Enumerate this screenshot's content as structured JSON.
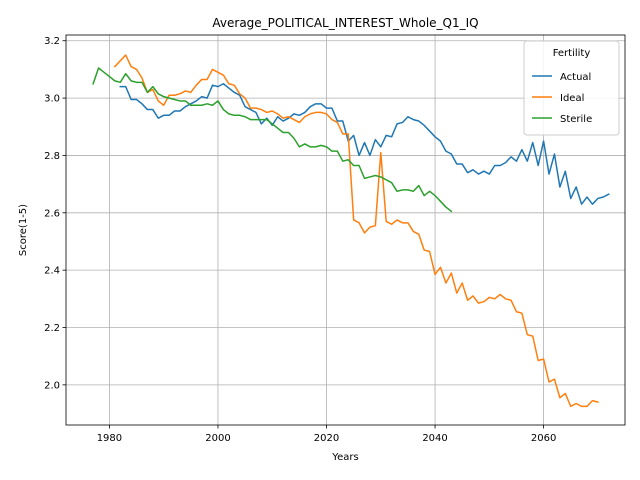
{
  "chart_data": {
    "type": "line",
    "title": "Average_POLITICAL_INTEREST_Whole_Q1_IQ",
    "xlabel": "Years",
    "ylabel": "Score(1-5)",
    "xlim": [
      1972,
      2075
    ],
    "ylim": [
      1.86,
      3.22
    ],
    "xticks": [
      1980,
      2000,
      2020,
      2040,
      2060
    ],
    "yticks": [
      2.0,
      2.2,
      2.4,
      2.6,
      2.8,
      3.0,
      3.2
    ],
    "xtick_labels": [
      "1980",
      "2000",
      "2020",
      "2040",
      "2060"
    ],
    "ytick_labels": [
      "2.0",
      "2.2",
      "2.4",
      "2.6",
      "2.8",
      "3.0",
      "3.2"
    ],
    "grid": true,
    "legend": {
      "title": "Fertility",
      "placement": "top-right"
    },
    "series": [
      {
        "name": "Actual",
        "color": "#1f77b4",
        "start_year": 1982,
        "values": [
          3.04,
          3.04,
          2.995,
          2.995,
          2.98,
          2.96,
          2.96,
          2.93,
          2.94,
          2.94,
          2.955,
          2.955,
          2.97,
          2.98,
          2.99,
          3.005,
          3.0,
          3.045,
          3.04,
          3.05,
          3.035,
          3.02,
          3.01,
          2.97,
          2.96,
          2.95,
          2.91,
          2.93,
          2.905,
          2.935,
          2.92,
          2.93,
          2.945,
          2.94,
          2.95,
          2.97,
          2.98,
          2.98,
          2.965,
          2.965,
          2.92,
          2.92,
          2.85,
          2.87,
          2.8,
          2.845,
          2.8,
          2.855,
          2.83,
          2.87,
          2.865,
          2.91,
          2.915,
          2.935,
          2.925,
          2.92,
          2.905,
          2.885,
          2.865,
          2.85,
          2.815,
          2.805,
          2.77,
          2.77,
          2.74,
          2.75,
          2.735,
          2.745,
          2.735,
          2.765,
          2.765,
          2.775,
          2.795,
          2.78,
          2.82,
          2.78,
          2.845,
          2.765,
          2.85,
          2.735,
          2.805,
          2.69,
          2.745,
          2.65,
          2.69,
          2.63,
          2.655,
          2.63,
          2.65,
          2.655,
          2.665
        ]
      },
      {
        "name": "Ideal",
        "color": "#ff7f0e",
        "start_year": 1981,
        "values": [
          3.11,
          3.13,
          3.15,
          3.11,
          3.1,
          3.07,
          3.02,
          3.03,
          2.99,
          2.975,
          3.01,
          3.01,
          3.015,
          3.025,
          3.02,
          3.045,
          3.065,
          3.065,
          3.1,
          3.09,
          3.08,
          3.05,
          3.045,
          3.015,
          3.0,
          2.965,
          2.965,
          2.96,
          2.95,
          2.955,
          2.945,
          2.93,
          2.935,
          2.925,
          2.915,
          2.935,
          2.945,
          2.95,
          2.95,
          2.945,
          2.925,
          2.915,
          2.875,
          2.875,
          2.575,
          2.565,
          2.53,
          2.55,
          2.555,
          2.81,
          2.57,
          2.56,
          2.575,
          2.565,
          2.565,
          2.535,
          2.525,
          2.47,
          2.465,
          2.385,
          2.41,
          2.355,
          2.39,
          2.32,
          2.355,
          2.295,
          2.31,
          2.285,
          2.29,
          2.305,
          2.3,
          2.315,
          2.3,
          2.295,
          2.255,
          2.25,
          2.175,
          2.17,
          2.085,
          2.09,
          2.01,
          2.02,
          1.955,
          1.97,
          1.925,
          1.935,
          1.925,
          1.925,
          1.945,
          1.94
        ]
      },
      {
        "name": "Sterile",
        "color": "#2ca02c",
        "start_year": 1977,
        "values": [
          3.05,
          3.105,
          3.09,
          3.075,
          3.06,
          3.055,
          3.085,
          3.06,
          3.055,
          3.055,
          3.02,
          3.04,
          3.015,
          3.005,
          3.0,
          2.995,
          2.99,
          2.99,
          2.975,
          2.975,
          2.975,
          2.98,
          2.975,
          2.99,
          2.96,
          2.945,
          2.94,
          2.94,
          2.935,
          2.925,
          2.925,
          2.925,
          2.925,
          2.91,
          2.895,
          2.88,
          2.88,
          2.86,
          2.83,
          2.84,
          2.83,
          2.83,
          2.835,
          2.83,
          2.815,
          2.815,
          2.78,
          2.785,
          2.765,
          2.765,
          2.72,
          2.725,
          2.73,
          2.725,
          2.715,
          2.705,
          2.675,
          2.68,
          2.68,
          2.675,
          2.695,
          2.66,
          2.675,
          2.66,
          2.64,
          2.62,
          2.605
        ]
      }
    ]
  }
}
